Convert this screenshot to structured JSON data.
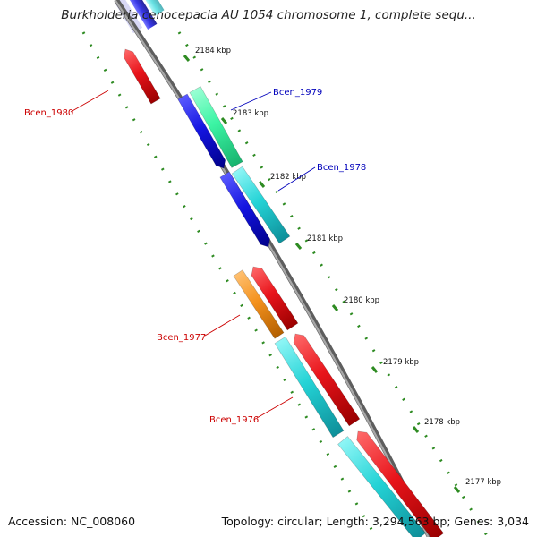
{
  "title": "Burkholderia cenocepacia AU 1054 chromosome 1, complete sequ...",
  "footer": {
    "accession": "Accession: NC_008060",
    "summary": "Topology: circular; Length: 3,294,563 bp; Genes: 3,034"
  },
  "colors": {
    "red": "#e8141b",
    "blue": "#1414e0",
    "cyan": "#24d3d6",
    "green": "#3cf4a4",
    "orange": "#f4921e",
    "backbone": "#8a8a8a",
    "tick": "#2e8b22",
    "label_red": "#cc0000",
    "label_blue": "#0000bb"
  },
  "ticks": [
    {
      "label": "2184 kbp"
    },
    {
      "label": "2183 kbp"
    },
    {
      "label": "2182 kbp"
    },
    {
      "label": "2181 kbp"
    },
    {
      "label": "2180 kbp"
    },
    {
      "label": "2179 kbp"
    },
    {
      "label": "2178 kbp"
    },
    {
      "label": "2177 kbp"
    }
  ],
  "genes": [
    {
      "name": "Bcen_1980",
      "color": "red"
    },
    {
      "name": "Bcen_1979",
      "color": "blue"
    },
    {
      "name": "Bcen_1978",
      "color": "blue"
    },
    {
      "name": "Bcen_1977",
      "color": "red"
    },
    {
      "name": "Bcen_1976",
      "color": "red"
    }
  ]
}
